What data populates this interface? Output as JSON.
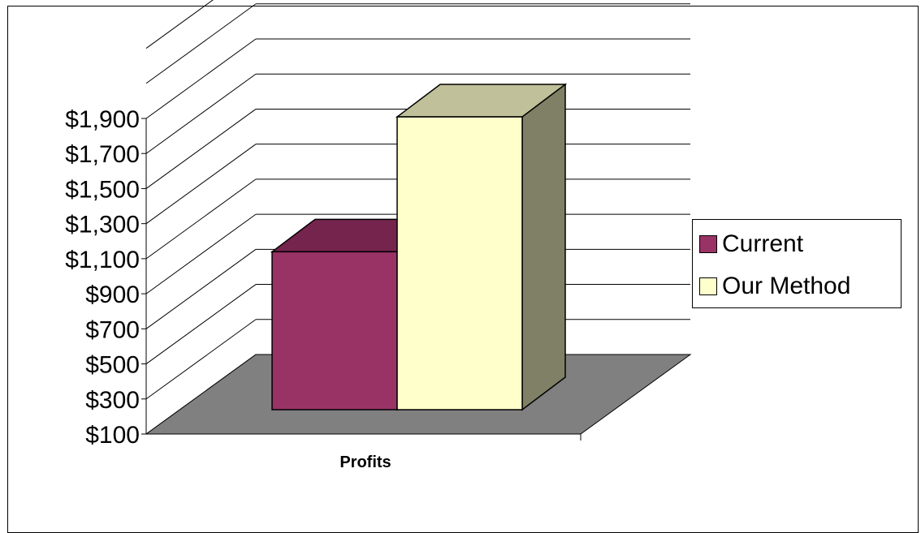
{
  "chart_data": {
    "type": "bar",
    "categories": [
      "Profits"
    ],
    "series": [
      {
        "name": "Current",
        "values": [
          1060
        ]
      },
      {
        "name": "Our Method",
        "values": [
          1880
        ]
      }
    ],
    "ylim": [
      100,
      1900
    ],
    "yticks": [
      100,
      300,
      500,
      700,
      900,
      1100,
      1300,
      1500,
      1700,
      1900
    ],
    "ytick_labels": [
      "$100",
      "$300",
      "$500",
      "$700",
      "$900",
      "$1,100",
      "$1,300",
      "$1,500",
      "$1,700",
      "$1,900"
    ],
    "xlabel": "Profits",
    "grid": true,
    "legend_position": "right",
    "three_d": true,
    "colors": {
      "series_front": [
        "#993366",
        "#ffffcc"
      ],
      "series_top": [
        "#74244d",
        "#c0c09a"
      ],
      "series_side": [
        "#5c1d3d",
        "#808066"
      ],
      "floor": "#808080",
      "gridline": "#000000"
    }
  }
}
